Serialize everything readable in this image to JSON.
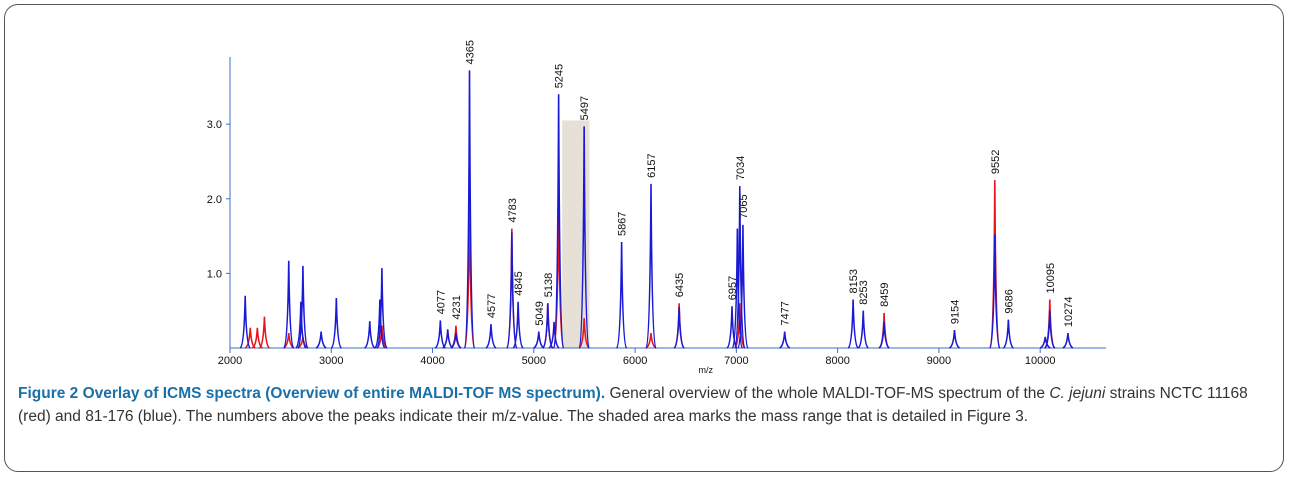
{
  "chart_data": {
    "type": "spectrum",
    "x_label": "m/z",
    "xlim": [
      2000,
      10650
    ],
    "xticks": [
      2000,
      3000,
      4000,
      5000,
      6000,
      7000,
      8000,
      9000,
      10000
    ],
    "ylim": [
      0,
      3.9
    ],
    "yticks": [
      {
        "value": 1,
        "label": "1.0"
      },
      {
        "value": 2,
        "label": "2.0"
      },
      {
        "value": 3,
        "label": "3.0"
      }
    ],
    "shaded_range": [
      5280,
      5550
    ],
    "shaded_height": 3.05,
    "shade_color": "#e6e0d6",
    "series": [
      {
        "color": "#e8141b",
        "x": [
          2200,
          2270,
          2340,
          2580,
          2720,
          3500,
          4231,
          4365,
          4783,
          5138,
          5245,
          5497,
          6157,
          6435,
          7034,
          8459,
          9552,
          10095
        ],
        "values": [
          0.27,
          0.27,
          0.42,
          0.2,
          0.15,
          0.3,
          0.3,
          2.0,
          1.6,
          0.6,
          2.0,
          0.4,
          0.2,
          0.6,
          0.6,
          0.47,
          2.25,
          0.65
        ]
      },
      {
        "color": "#1a1ad6",
        "x": [
          2150,
          2580,
          2700,
          2720,
          2900,
          3050,
          3380,
          3480,
          3500,
          4077,
          4150,
          4231,
          4365,
          4577,
          4783,
          4845,
          5049,
          5138,
          5200,
          5245,
          5497,
          5867,
          6157,
          6435,
          6957,
          7010,
          7034,
          7065,
          7477,
          8153,
          8253,
          8459,
          9154,
          9552,
          9686,
          10050,
          10095,
          10274
        ],
        "values": [
          0.7,
          1.17,
          0.62,
          1.1,
          0.22,
          0.67,
          0.36,
          0.65,
          1.07,
          0.37,
          0.25,
          0.2,
          3.72,
          0.32,
          1.55,
          0.62,
          0.22,
          0.6,
          0.35,
          3.4,
          2.97,
          1.42,
          2.2,
          0.55,
          0.56,
          1.6,
          2.17,
          1.65,
          0.22,
          0.65,
          0.5,
          0.35,
          0.24,
          1.52,
          0.38,
          0.15,
          0.5,
          0.2
        ]
      }
    ],
    "peak_labels": [
      4077,
      4231,
      4365,
      4577,
      4783,
      4845,
      5049,
      5138,
      5245,
      5497,
      5867,
      6157,
      6435,
      6957,
      7034,
      7065,
      7477,
      8153,
      8253,
      8459,
      9154,
      9552,
      9686,
      10095,
      10274
    ]
  },
  "caption": {
    "title": "Figure 2 Overlay of ICMS spectra (Overview of entire MALDI-TOF MS spectrum).",
    "text_before": "General overview of the whole MALDI-TOF-MS spectrum of the",
    "species": "C. jejuni",
    "text_after": "strains NCTC 11168 (red) and 81-176 (blue). The numbers above the peaks indicate their m/z-value. The shaded area marks the mass range that is detailed in Figure 3."
  }
}
